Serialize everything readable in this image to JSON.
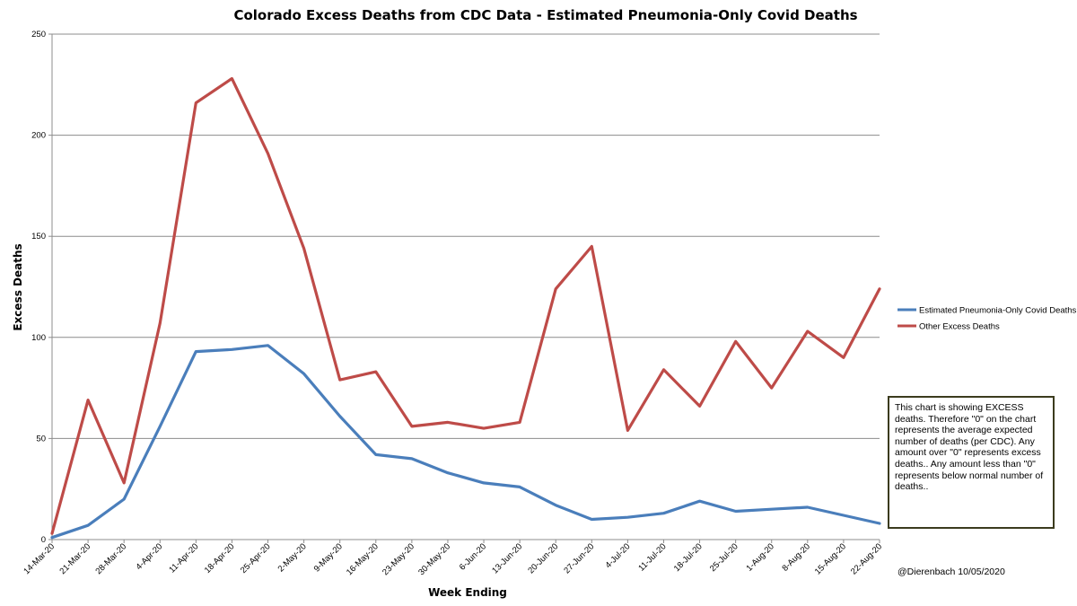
{
  "chart_data": {
    "type": "line",
    "title": "Colorado  Excess Deaths from CDC Data - Estimated Pneumonia-Only  Covid Deaths",
    "xlabel": "Week Ending",
    "ylabel": "Excess Deaths",
    "ylim": [
      0,
      250
    ],
    "yticks": [
      0,
      50,
      100,
      150,
      200,
      250
    ],
    "grid": true,
    "legend_position": "right",
    "categories": [
      "14-Mar-20",
      "21-Mar-20",
      "28-Mar-20",
      "4-Apr-20",
      "11-Apr-20",
      "18-Apr-20",
      "25-Apr-20",
      "2-May-20",
      "9-May-20",
      "16-May-20",
      "23-May-20",
      "30-May-20",
      "6-Jun-20",
      "13-Jun-20",
      "20-Jun-20",
      "27-Jun-20",
      "4-Jul-20",
      "11-Jul-20",
      "18-Jul-20",
      "25-Jul-20",
      "1-Aug-20",
      "8-Aug-20",
      "15-Aug-20",
      "22-Aug-20"
    ],
    "series": [
      {
        "name": "Estimated Pneumonia-Only Covid Deaths",
        "color": "#4a7ebb",
        "values": [
          1,
          7,
          20,
          56,
          93,
          94,
          96,
          82,
          61,
          42,
          40,
          33,
          28,
          26,
          17,
          10,
          11,
          13,
          19,
          14,
          15,
          16,
          12,
          8
        ]
      },
      {
        "name": "Other Excess Deaths",
        "color": "#be4b48",
        "values": [
          3,
          69,
          28,
          107,
          216,
          228,
          191,
          144,
          79,
          83,
          56,
          58,
          55,
          58,
          124,
          145,
          54,
          84,
          66,
          98,
          75,
          103,
          90,
          124
        ]
      }
    ]
  },
  "note": "This chart is showing EXCESS deaths. Therefore \"0\" on the chart represents the average expected number of deaths (per CDC). Any amount over \"0\" represents excess deaths.. Any amount less than \"0\" represents below normal number of deaths..",
  "credit": "@Dierenbach 10/05/2020"
}
